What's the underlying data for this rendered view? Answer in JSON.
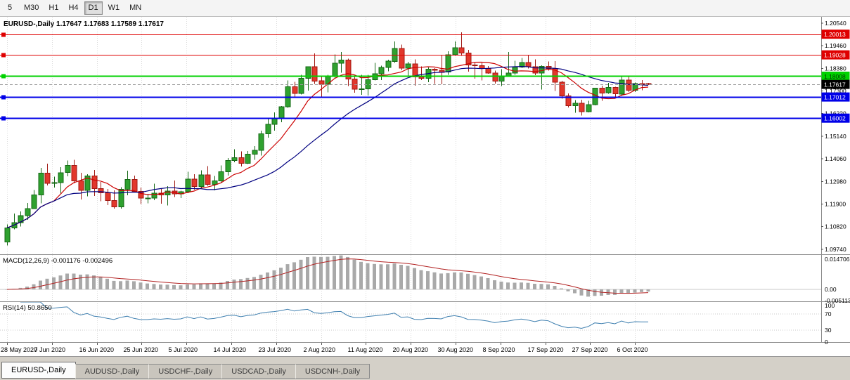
{
  "toolbar": {
    "periods": [
      {
        "label": "5",
        "active": false
      },
      {
        "label": "M30",
        "active": false
      },
      {
        "label": "H1",
        "active": false
      },
      {
        "label": "H4",
        "active": false
      },
      {
        "label": "D1",
        "active": true
      },
      {
        "label": "W1",
        "active": false
      },
      {
        "label": "MN",
        "active": false
      }
    ]
  },
  "chart": {
    "title_symbol": "EURUSD-,Daily",
    "ohlc": {
      "open": "1.17647",
      "high": "1.17683",
      "low": "1.17589",
      "close": "1.17617"
    },
    "ma_fast_period": 8,
    "ma_slow_period": 21,
    "colors": {
      "up": "#2FA12F",
      "up_edge": "#156815",
      "down": "#E2382C",
      "down_edge": "#A01812",
      "ma_fast": "#CC0000",
      "ma_slow": "#000080",
      "grid": "#DCDCDC",
      "separator": "#8C8C8C",
      "axis_text": "#000000",
      "bid_line": "#9A9A9A"
    },
    "levels": [
      {
        "label": "1.20013",
        "price": 1.20013,
        "color": "#DF0000",
        "text_color": "#FFFFFF",
        "width": 1
      },
      {
        "label": "1.19028",
        "price": 1.19028,
        "color": "#DF0000",
        "text_color": "#FFFFFF",
        "width": 1
      },
      {
        "label": "1.18008",
        "price": 1.18008,
        "color": "#00D200",
        "text_color": "#003300",
        "width": 2
      },
      {
        "label": "1.17012",
        "price": 1.17012,
        "color": "#0000E8",
        "text_color": "#FFFFFF",
        "width": 2
      },
      {
        "label": "1.16002",
        "price": 1.16002,
        "color": "#0000E8",
        "text_color": "#FFFFFF",
        "width": 2
      }
    ],
    "current_price": {
      "label": "1.17617",
      "value": 1.17617,
      "badge_color": "#000000",
      "text_color": "#FFFFFF"
    }
  },
  "chart_data": {
    "type": "candlestick",
    "y_ticks": [
      {
        "label": "1.20540",
        "value": 1.2054
      },
      {
        "label": "1.19460",
        "value": 1.1946
      },
      {
        "label": "1.18380",
        "value": 1.1838
      },
      {
        "label": "1.17300",
        "value": 1.173
      },
      {
        "label": "1.16220",
        "value": 1.1622
      },
      {
        "label": "1.15140",
        "value": 1.1514
      },
      {
        "label": "1.14060",
        "value": 1.1406
      },
      {
        "label": "1.12980",
        "value": 1.1298
      },
      {
        "label": "1.11900",
        "value": 1.119
      },
      {
        "label": "1.10820",
        "value": 1.1082
      },
      {
        "label": "1.09740",
        "value": 1.0974
      }
    ],
    "x_labels": [
      "28 May 2020",
      "7 Jun 2020",
      "16 Jun 2020",
      "25 Jun 2020",
      "5 Jul 2020",
      "14 Jul 2020",
      "23 Jul 2020",
      "2 Aug 2020",
      "11 Aug 2020",
      "20 Aug 2020",
      "30 Aug 2020",
      "8 Sep 2020",
      "17 Sep 2020",
      "27 Sep 2020",
      "6 Oct 2020"
    ],
    "candles": [
      [
        1.1008,
        1.1093,
        1.0992,
        1.1076
      ],
      [
        1.1076,
        1.1145,
        1.1069,
        1.1101
      ],
      [
        1.1101,
        1.1154,
        1.1082,
        1.1134
      ],
      [
        1.1134,
        1.1195,
        1.1115,
        1.1168
      ],
      [
        1.1168,
        1.1257,
        1.1166,
        1.1234
      ],
      [
        1.1234,
        1.1362,
        1.1194,
        1.1337
      ],
      [
        1.1337,
        1.1383,
        1.1278,
        1.1289
      ],
      [
        1.1289,
        1.132,
        1.1268,
        1.1293
      ],
      [
        1.1293,
        1.1366,
        1.124,
        1.134
      ],
      [
        1.134,
        1.1398,
        1.1322,
        1.1374
      ],
      [
        1.1374,
        1.1401,
        1.1289,
        1.1301
      ],
      [
        1.1301,
        1.134,
        1.1212,
        1.1256
      ],
      [
        1.1256,
        1.1333,
        1.1227,
        1.1324
      ],
      [
        1.1324,
        1.1353,
        1.1228,
        1.1264
      ],
      [
        1.1264,
        1.1296,
        1.1204,
        1.1244
      ],
      [
        1.1244,
        1.1262,
        1.1185,
        1.1206
      ],
      [
        1.1206,
        1.1255,
        1.1168,
        1.1177
      ],
      [
        1.1177,
        1.1271,
        1.1168,
        1.126
      ],
      [
        1.126,
        1.1349,
        1.1232,
        1.1308
      ],
      [
        1.1308,
        1.1326,
        1.1245,
        1.1251
      ],
      [
        1.1251,
        1.1269,
        1.119,
        1.1218
      ],
      [
        1.1218,
        1.1239,
        1.1194,
        1.1219
      ],
      [
        1.1219,
        1.1288,
        1.1209,
        1.1242
      ],
      [
        1.1242,
        1.1262,
        1.1191,
        1.1234
      ],
      [
        1.1234,
        1.1276,
        1.1184,
        1.1252
      ],
      [
        1.1252,
        1.1302,
        1.1223,
        1.1239
      ],
      [
        1.1239,
        1.1254,
        1.1219,
        1.1248
      ],
      [
        1.1248,
        1.1345,
        1.1242,
        1.1309
      ],
      [
        1.1309,
        1.1333,
        1.1259,
        1.1274
      ],
      [
        1.1274,
        1.1351,
        1.1265,
        1.133
      ],
      [
        1.133,
        1.1371,
        1.1277,
        1.1284
      ],
      [
        1.1284,
        1.1324,
        1.1255,
        1.13
      ],
      [
        1.13,
        1.1375,
        1.1293,
        1.1344
      ],
      [
        1.1344,
        1.1409,
        1.1326,
        1.1398
      ],
      [
        1.1398,
        1.1452,
        1.139,
        1.1411
      ],
      [
        1.1411,
        1.1442,
        1.137,
        1.1384
      ],
      [
        1.1384,
        1.1444,
        1.1381,
        1.1428
      ],
      [
        1.1428,
        1.1467,
        1.1402,
        1.1446
      ],
      [
        1.1446,
        1.154,
        1.1422,
        1.1525
      ],
      [
        1.1525,
        1.1601,
        1.1507,
        1.157
      ],
      [
        1.157,
        1.1627,
        1.154,
        1.1598
      ],
      [
        1.1598,
        1.1658,
        1.1581,
        1.1655
      ],
      [
        1.1655,
        1.1781,
        1.165,
        1.175
      ],
      [
        1.175,
        1.1773,
        1.17,
        1.1718
      ],
      [
        1.1718,
        1.1807,
        1.1714,
        1.1791
      ],
      [
        1.1791,
        1.1847,
        1.1732,
        1.1846
      ],
      [
        1.1846,
        1.1909,
        1.1763,
        1.1778
      ],
      [
        1.1778,
        1.1797,
        1.1696,
        1.1762
      ],
      [
        1.1762,
        1.1807,
        1.1723,
        1.1803
      ],
      [
        1.1803,
        1.1905,
        1.1791,
        1.1863
      ],
      [
        1.1863,
        1.1916,
        1.1817,
        1.1878
      ],
      [
        1.1878,
        1.1884,
        1.1754,
        1.1787
      ],
      [
        1.1787,
        1.1798,
        1.1722,
        1.1738
      ],
      [
        1.1738,
        1.1808,
        1.1711,
        1.174
      ],
      [
        1.174,
        1.1807,
        1.1709,
        1.1784
      ],
      [
        1.1784,
        1.1864,
        1.1781,
        1.1813
      ],
      [
        1.1813,
        1.1851,
        1.1782,
        1.1842
      ],
      [
        1.1842,
        1.1879,
        1.1824,
        1.1872
      ],
      [
        1.1872,
        1.1966,
        1.1864,
        1.1934
      ],
      [
        1.1934,
        1.1952,
        1.183,
        1.184
      ],
      [
        1.184,
        1.1869,
        1.1801,
        1.1859
      ],
      [
        1.1859,
        1.1882,
        1.1755,
        1.1797
      ],
      [
        1.1797,
        1.1848,
        1.1782,
        1.179
      ],
      [
        1.179,
        1.1843,
        1.1772,
        1.1834
      ],
      [
        1.1834,
        1.1839,
        1.1763,
        1.183
      ],
      [
        1.183,
        1.19,
        1.1762,
        1.182
      ],
      [
        1.182,
        1.192,
        1.1808,
        1.1903
      ],
      [
        1.1903,
        1.1966,
        1.1898,
        1.1936
      ],
      [
        1.1936,
        1.2011,
        1.1898,
        1.1911
      ],
      [
        1.1911,
        1.1927,
        1.1822,
        1.1854
      ],
      [
        1.1854,
        1.1865,
        1.1789,
        1.1851
      ],
      [
        1.1851,
        1.1865,
        1.1781,
        1.1838
      ],
      [
        1.1838,
        1.1849,
        1.1812,
        1.1816
      ],
      [
        1.1816,
        1.1827,
        1.1766,
        1.1777
      ],
      [
        1.1777,
        1.1834,
        1.1753,
        1.1802
      ],
      [
        1.1802,
        1.1917,
        1.1799,
        1.1815
      ],
      [
        1.1815,
        1.1874,
        1.1808,
        1.1845
      ],
      [
        1.1845,
        1.1888,
        1.1839,
        1.1866
      ],
      [
        1.1866,
        1.19,
        1.1838,
        1.1846
      ],
      [
        1.1846,
        1.1882,
        1.1805,
        1.1815
      ],
      [
        1.1815,
        1.1853,
        1.1737,
        1.1848
      ],
      [
        1.1848,
        1.1871,
        1.1827,
        1.1838
      ],
      [
        1.1838,
        1.1872,
        1.1731,
        1.1772
      ],
      [
        1.1772,
        1.1778,
        1.1693,
        1.1707
      ],
      [
        1.1707,
        1.1719,
        1.1651,
        1.166
      ],
      [
        1.166,
        1.1686,
        1.1626,
        1.1672
      ],
      [
        1.1672,
        1.1688,
        1.1612,
        1.1631
      ],
      [
        1.1631,
        1.1683,
        1.1628,
        1.1664
      ],
      [
        1.1664,
        1.1746,
        1.1661,
        1.1743
      ],
      [
        1.1743,
        1.1755,
        1.1684,
        1.1721
      ],
      [
        1.1721,
        1.1769,
        1.1717,
        1.1747
      ],
      [
        1.1747,
        1.1751,
        1.1695,
        1.1716
      ],
      [
        1.1716,
        1.1797,
        1.1706,
        1.1783
      ],
      [
        1.1783,
        1.1798,
        1.1725,
        1.1733
      ],
      [
        1.1733,
        1.1771,
        1.1725,
        1.1766
      ],
      [
        1.1766,
        1.1782,
        1.1733,
        1.1761
      ],
      [
        1.17647,
        1.17683,
        1.17589,
        1.17617
      ]
    ]
  },
  "indicators": {
    "macd": {
      "title": "MACD(12,26,9)",
      "value_main": "-0.001176",
      "value_signal": "-0.002496",
      "scale_max": 0.014706,
      "scale_min": -0.005113,
      "ticks": [
        {
          "label": "0.014706",
          "value": 0.014706
        },
        {
          "label": "0.00",
          "value": 0
        },
        {
          "label": "-0.005113",
          "value": -0.005113
        }
      ],
      "histogram_color": "#A9A9A9",
      "signal_color": "#B22222"
    },
    "rsi": {
      "title": "RSI(14)",
      "value": "50.8650",
      "line_color": "#4080B0",
      "ticks": [
        {
          "label": "100",
          "value": 100
        },
        {
          "label": "70",
          "value": 70
        },
        {
          "label": "30",
          "value": 30
        },
        {
          "label": "0",
          "value": 0
        }
      ],
      "levels": [
        70,
        30
      ]
    }
  },
  "tabs": [
    {
      "label": "EURUSD-,Daily",
      "active": true
    },
    {
      "label": "AUDUSD-,Daily",
      "active": false
    },
    {
      "label": "USDCHF-,Daily",
      "active": false
    },
    {
      "label": "USDCAD-,Daily",
      "active": false
    },
    {
      "label": "USDCNH-,Daily",
      "active": false
    }
  ]
}
